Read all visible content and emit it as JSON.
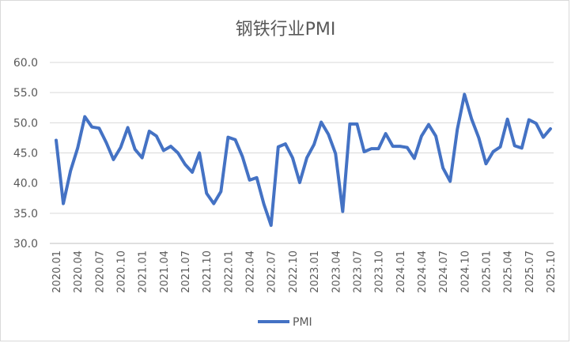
{
  "chart_data": {
    "type": "line",
    "title": "钢铁行业PMI",
    "xlabel": "",
    "ylabel": "",
    "ylim": [
      30,
      60
    ],
    "yticks": [
      "30.0",
      "35.0",
      "40.0",
      "45.0",
      "50.0",
      "55.0",
      "60.0"
    ],
    "grid": true,
    "legend_position": "bottom",
    "x": [
      "2020.01",
      "2020.02",
      "2020.03",
      "2020.04",
      "2020.05",
      "2020.06",
      "2020.07",
      "2020.08",
      "2020.09",
      "2020.10",
      "2020.11",
      "2020.12",
      "2021.01",
      "2021.02",
      "2021.03",
      "2021.04",
      "2021.05",
      "2021.06",
      "2021.07",
      "2021.08",
      "2021.09",
      "2021.10",
      "2021.11",
      "2021.12",
      "2022.01",
      "2022.02",
      "2022.03",
      "2022.04",
      "2022.05",
      "2022.06",
      "2022.07",
      "2022.08",
      "2022.09",
      "2022.10",
      "2022.11",
      "2022.12",
      "2023.01",
      "2023.02",
      "2023.03",
      "2023.04",
      "2023.05",
      "2023.06",
      "2023.07",
      "2023.08",
      "2023.09",
      "2023.10",
      "2023.11",
      "2023.12",
      "2024.01",
      "2024.02",
      "2024.03",
      "2024.04",
      "2024.05",
      "2024.06",
      "2024.07",
      "2024.08",
      "2024.09",
      "2024.10",
      "2024.11",
      "2024.12",
      "2025.01",
      "2025.02",
      "2025.03",
      "2025.04",
      "2025.05",
      "2025.06",
      "2025.07",
      "2025.08",
      "2025.09",
      "2025.10"
    ],
    "xtick_labels": [
      "2020.01",
      "2020.04",
      "2020.07",
      "2020.10",
      "2021.01",
      "2021.04",
      "2021.07",
      "2021.10",
      "2022.01",
      "2022.04",
      "2022.07",
      "2022.10",
      "2023.01",
      "2023.04",
      "2023.07",
      "2023.10",
      "2024.01",
      "2024.04",
      "2024.07",
      "2024.10",
      "2025.01",
      "2025.04",
      "2025.07",
      "2025.10"
    ],
    "series": [
      {
        "name": "PMI",
        "color": "#4472c4",
        "values": [
          47.1,
          36.6,
          42.0,
          45.8,
          51.0,
          49.3,
          49.1,
          46.7,
          43.9,
          45.9,
          49.2,
          45.6,
          44.2,
          48.6,
          47.8,
          45.4,
          46.1,
          45.0,
          43.1,
          41.8,
          45.0,
          38.3,
          36.6,
          38.6,
          47.6,
          47.2,
          44.4,
          40.5,
          40.9,
          36.5,
          33.0,
          46.0,
          46.5,
          44.2,
          40.1,
          44.2,
          46.4,
          50.1,
          48.1,
          44.9,
          35.3,
          49.8,
          49.8,
          45.2,
          45.7,
          45.7,
          48.2,
          46.1,
          46.1,
          45.9,
          44.1,
          47.8,
          49.7,
          47.8,
          42.5,
          40.3,
          48.9,
          54.7,
          50.6,
          47.5,
          43.2,
          45.2,
          46.0,
          50.6,
          46.2,
          45.8,
          50.5,
          49.9,
          47.6,
          49.0
        ]
      }
    ]
  }
}
